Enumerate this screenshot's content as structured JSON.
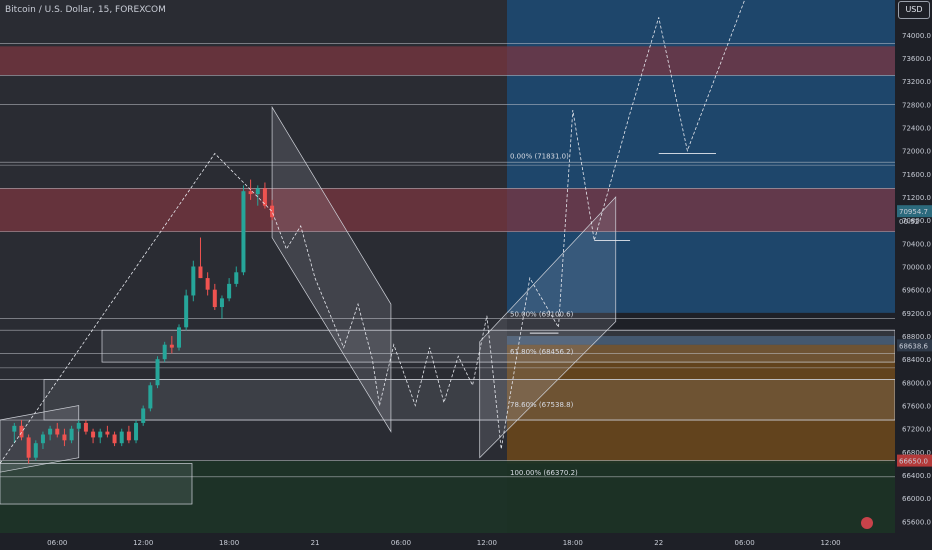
{
  "header": {
    "symbol": "Bitcoin / U.S. Dollar, 15, FOREXCOM",
    "currency": "USD"
  },
  "chart_data": {
    "type": "candlestick",
    "y_axis": {
      "range": [
        65400,
        74600
      ],
      "ticks": [
        74000,
        73600,
        73200,
        72800,
        72400,
        72000,
        71600,
        71200,
        70800,
        70400,
        70000,
        69600,
        69200,
        68800,
        68400,
        68000,
        67600,
        67200,
        66800,
        66400,
        66000,
        65600
      ],
      "tick_labels": [
        "74000.0",
        "73600.0",
        "73200.0",
        "72800.0",
        "72400.0",
        "72000.0",
        "71600.0",
        "71200.0",
        "70800.0",
        "70400.0",
        "70000.0",
        "69600.0",
        "69200.0",
        "68800.0",
        "68400.0",
        "68000.0",
        "67600.0",
        "67200.0",
        "66800.0",
        "66400.0",
        "66000.0",
        "65600.0"
      ]
    },
    "x_axis": {
      "tick_labels": [
        "06:00",
        "12:00",
        "18:00",
        "21",
        "06:00",
        "12:00",
        "18:00",
        "22",
        "06:00",
        "12:00"
      ],
      "ticks": [
        6,
        12,
        18,
        24,
        30,
        36,
        42,
        48,
        54,
        60
      ]
    },
    "x_range_hours": [
      2,
      64.5
    ],
    "candles": [
      [
        3,
        67150,
        67300,
        66950,
        67250
      ],
      [
        3.5,
        67250,
        67350,
        67000,
        67050
      ],
      [
        4,
        67050,
        67100,
        66600,
        66700
      ],
      [
        4.5,
        66700,
        67000,
        66650,
        66950
      ],
      [
        5,
        66950,
        67150,
        66850,
        67100
      ],
      [
        5.5,
        67100,
        67250,
        67000,
        67200
      ],
      [
        6,
        67200,
        67300,
        67050,
        67100
      ],
      [
        6.5,
        67100,
        67200,
        66900,
        67000
      ],
      [
        7,
        67000,
        67250,
        66950,
        67200
      ],
      [
        7.5,
        67200,
        67350,
        67150,
        67300
      ],
      [
        8,
        67300,
        67350,
        67100,
        67150
      ],
      [
        8.5,
        67150,
        67200,
        66950,
        67050
      ],
      [
        9,
        67050,
        67200,
        66950,
        67150
      ],
      [
        9.5,
        67150,
        67250,
        67050,
        67100
      ],
      [
        10,
        67100,
        67150,
        66900,
        66950
      ],
      [
        10.5,
        66950,
        67200,
        66900,
        67150
      ],
      [
        11,
        67150,
        67250,
        66950,
        67000
      ],
      [
        11.5,
        67000,
        67350,
        66950,
        67300
      ],
      [
        12,
        67300,
        67600,
        67250,
        67550
      ],
      [
        12.5,
        67550,
        68000,
        67500,
        67950
      ],
      [
        13,
        67950,
        68450,
        67900,
        68400
      ],
      [
        13.5,
        68400,
        68700,
        68350,
        68650
      ],
      [
        14,
        68650,
        68800,
        68500,
        68600
      ],
      [
        14.5,
        68600,
        69000,
        68550,
        68950
      ],
      [
        15,
        68950,
        69600,
        68900,
        69500
      ],
      [
        15.5,
        69500,
        70100,
        69400,
        70000
      ],
      [
        16,
        70000,
        70500,
        69800,
        69800
      ],
      [
        16.5,
        69800,
        69900,
        69500,
        69600
      ],
      [
        17,
        69600,
        69700,
        69250,
        69300
      ],
      [
        17.5,
        69300,
        69500,
        69100,
        69450
      ],
      [
        18,
        69450,
        69800,
        69400,
        69700
      ],
      [
        18.5,
        69700,
        70000,
        69650,
        69900
      ],
      [
        19,
        69900,
        71400,
        69850,
        71300
      ],
      [
        19.5,
        71300,
        71500,
        71150,
        71250
      ],
      [
        20,
        71250,
        71400,
        71050,
        71350
      ],
      [
        20.5,
        71350,
        71450,
        71000,
        71050
      ],
      [
        21,
        71050,
        71150,
        70800,
        70850
      ]
    ]
  },
  "zones": {
    "supply_color": "#7a3540",
    "demand_blue": "#1f4e78",
    "demand_orange": "#6e4a1c",
    "dark_green": "#1c3326"
  },
  "fib": [
    {
      "label": "0.00% (71831.0)",
      "price": 71831
    },
    {
      "label": "50.00% (69100.6)",
      "price": 69100.6
    },
    {
      "label": "61.80% (68456.2)",
      "price": 68456.2
    },
    {
      "label": "78.60% (67538.8)",
      "price": 67538.8
    },
    {
      "label": "100.00% (66370.2)",
      "price": 66370.2
    }
  ],
  "price_labels": {
    "current": "70954.7",
    "countdown": "06:52",
    "mark": "68638.6",
    "low": "66650.0"
  }
}
